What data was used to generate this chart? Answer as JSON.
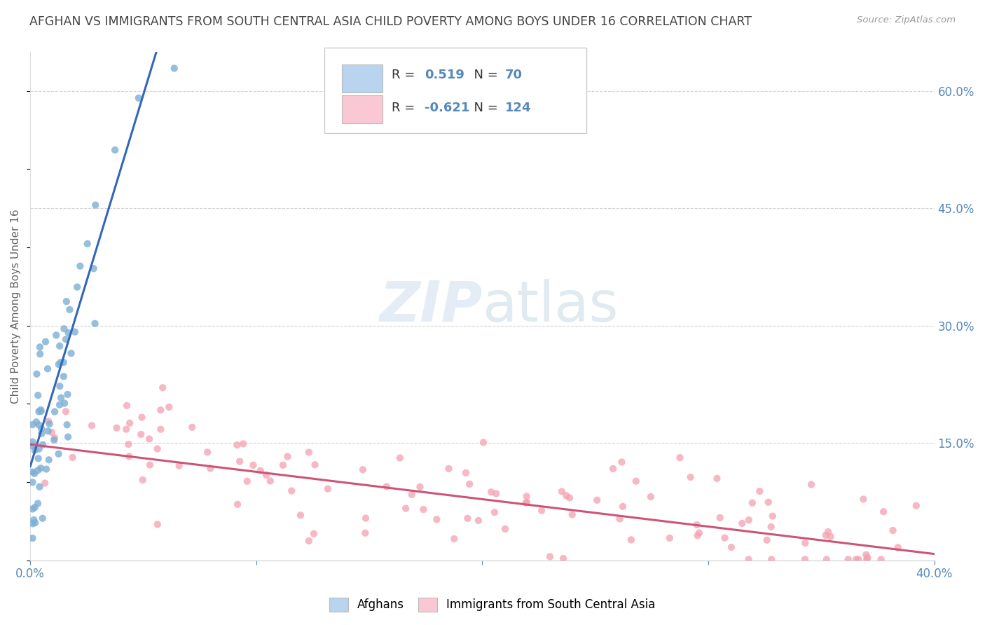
{
  "title": "AFGHAN VS IMMIGRANTS FROM SOUTH CENTRAL ASIA CHILD POVERTY AMONG BOYS UNDER 16 CORRELATION CHART",
  "source": "Source: ZipAtlas.com",
  "ylabel": "Child Poverty Among Boys Under 16",
  "xlim": [
    0.0,
    0.4
  ],
  "ylim": [
    0.0,
    0.65
  ],
  "blue_color": "#7BAFD4",
  "blue_fill": "#B8D4EE",
  "pink_color": "#F4A0B0",
  "pink_fill": "#FAC8D4",
  "trend_blue": "#3366BB",
  "trend_pink": "#CC5577",
  "R_blue": "0.519",
  "N_blue": "70",
  "R_pink": "-0.621",
  "N_pink": "124",
  "legend_blue": "Afghans",
  "legend_pink": "Immigrants from South Central Asia",
  "watermark_ZIP": "ZIP",
  "watermark_atlas": "atlas",
  "background_color": "#ffffff",
  "grid_color": "#cccccc",
  "title_color": "#444444",
  "title_fontsize": 12.5,
  "axis_label_color": "#5588BB",
  "legend_text_color": "#5588BB",
  "ylabel_color": "#666666"
}
